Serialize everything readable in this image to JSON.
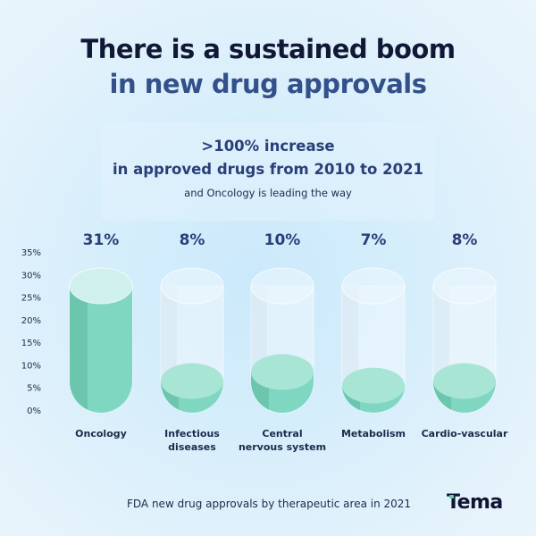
{
  "header": {
    "title_line1": "There is a sustained boom",
    "title_line2": "in new drug approvals"
  },
  "callout": {
    "line1": ">100% increase",
    "line2": "in approved drugs from 2010 to 2021",
    "subline": "and Oncology is leading the way"
  },
  "footer": {
    "caption": "FDA new drug approvals by therapeutic area in 2021",
    "logo": "Tema"
  },
  "colors": {
    "title_dark": "#111835",
    "title_blue": "#33508a",
    "liquid": "#7fd7c2",
    "liquid_top": "#a8e5d5",
    "liquid_shadow": "#6cc6ae"
  },
  "chart_data": {
    "type": "bar",
    "style": "test-tube",
    "title": "FDA new drug approvals by therapeutic area in 2021",
    "xlabel": "",
    "ylabel": "",
    "ylim": [
      0,
      35
    ],
    "yticks": [
      "0%",
      "5%",
      "10%",
      "15%",
      "20%",
      "25%",
      "30%",
      "35%"
    ],
    "categories": [
      "Oncology",
      "Infectious diseases",
      "Central nervous system",
      "Metabolism",
      "Cardio-vascular"
    ],
    "category_lines": [
      [
        "Oncology"
      ],
      [
        "Infectious",
        "diseases"
      ],
      [
        "Central",
        "nervous system"
      ],
      [
        "Metabolism"
      ],
      [
        "Cardio-vascular"
      ]
    ],
    "values": [
      31,
      8,
      10,
      7,
      8
    ],
    "data_labels": [
      "31%",
      "8%",
      "10%",
      "7%",
      "8%"
    ],
    "grid": false
  }
}
